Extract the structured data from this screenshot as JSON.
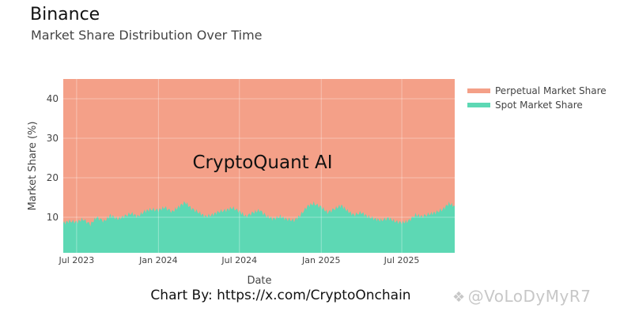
{
  "title": "Binance",
  "subtitle": "Market Share Distribution Over Time",
  "credit": "Chart By: https://x.com/CryptoOnchain",
  "watermark_text": "@VoLoDyMyR7",
  "plot_annotation": "CryptoQuant AI",
  "colors": {
    "perpetual": "#f4a088",
    "spot": "#5dd8b4",
    "axis_text": "#444444",
    "grid": "rgba(255,255,255,0.35)"
  },
  "chart_data": {
    "type": "area",
    "stacked": true,
    "xlabel": "Date",
    "ylabel": "Market Share (%)",
    "x_range": [
      "2023-06-01",
      "2025-10-28"
    ],
    "ylim": [
      1,
      45
    ],
    "yticks": [
      10,
      20,
      30,
      40
    ],
    "xticks": [
      {
        "date": "2023-07-01",
        "label": "Jul 2023"
      },
      {
        "date": "2024-01-01",
        "label": "Jan 2024"
      },
      {
        "date": "2024-07-01",
        "label": "Jul 2024"
      },
      {
        "date": "2025-01-01",
        "label": "Jan 2025"
      },
      {
        "date": "2025-07-01",
        "label": "Jul 2025"
      }
    ],
    "legend_position": "top-right",
    "grid": true,
    "series": [
      {
        "name": "Perpetual Market Share",
        "fill_to": 45,
        "points": [
          [
            "2023-06-01",
            45
          ],
          [
            "2025-10-28",
            45
          ]
        ]
      },
      {
        "name": "Spot Market Share",
        "points": [
          [
            "2023-06-01",
            8.5
          ],
          [
            "2023-06-15",
            9.0
          ],
          [
            "2023-07-01",
            8.8
          ],
          [
            "2023-07-15",
            9.5
          ],
          [
            "2023-08-01",
            8.2
          ],
          [
            "2023-08-15",
            10.0
          ],
          [
            "2023-09-01",
            9.0
          ],
          [
            "2023-09-15",
            10.5
          ],
          [
            "2023-10-01",
            9.6
          ],
          [
            "2023-10-15",
            10.2
          ],
          [
            "2023-11-01",
            11.0
          ],
          [
            "2023-11-15",
            10.2
          ],
          [
            "2023-12-01",
            11.5
          ],
          [
            "2023-12-15",
            12.0
          ],
          [
            "2024-01-01",
            11.8
          ],
          [
            "2024-01-15",
            12.5
          ],
          [
            "2024-02-01",
            11.4
          ],
          [
            "2024-02-15",
            12.6
          ],
          [
            "2024-03-01",
            13.8
          ],
          [
            "2024-03-15",
            12.2
          ],
          [
            "2024-04-01",
            11.2
          ],
          [
            "2024-04-15",
            10.2
          ],
          [
            "2024-05-01",
            10.6
          ],
          [
            "2024-05-15",
            11.4
          ],
          [
            "2024-06-01",
            11.8
          ],
          [
            "2024-06-15",
            12.4
          ],
          [
            "2024-07-01",
            11.5
          ],
          [
            "2024-07-15",
            10.2
          ],
          [
            "2024-08-01",
            11.2
          ],
          [
            "2024-08-15",
            11.8
          ],
          [
            "2024-09-01",
            10.2
          ],
          [
            "2024-09-15",
            9.6
          ],
          [
            "2024-10-01",
            10.2
          ],
          [
            "2024-10-15",
            9.5
          ],
          [
            "2024-11-01",
            9.2
          ],
          [
            "2024-11-15",
            10.5
          ],
          [
            "2024-12-01",
            12.8
          ],
          [
            "2024-12-15",
            13.5
          ],
          [
            "2025-01-01",
            12.6
          ],
          [
            "2025-01-15",
            11.2
          ],
          [
            "2025-02-01",
            12.2
          ],
          [
            "2025-02-15",
            13.0
          ],
          [
            "2025-03-01",
            11.6
          ],
          [
            "2025-03-15",
            10.6
          ],
          [
            "2025-04-01",
            11.2
          ],
          [
            "2025-04-15",
            10.2
          ],
          [
            "2025-05-01",
            9.6
          ],
          [
            "2025-05-15",
            9.2
          ],
          [
            "2025-06-01",
            9.8
          ],
          [
            "2025-06-15",
            9.0
          ],
          [
            "2025-07-01",
            8.6
          ],
          [
            "2025-07-15",
            9.0
          ],
          [
            "2025-08-01",
            10.6
          ],
          [
            "2025-08-15",
            10.2
          ],
          [
            "2025-09-01",
            10.8
          ],
          [
            "2025-09-15",
            11.2
          ],
          [
            "2025-10-01",
            12.0
          ],
          [
            "2025-10-15",
            13.5
          ],
          [
            "2025-10-28",
            12.8
          ]
        ]
      }
    ]
  }
}
